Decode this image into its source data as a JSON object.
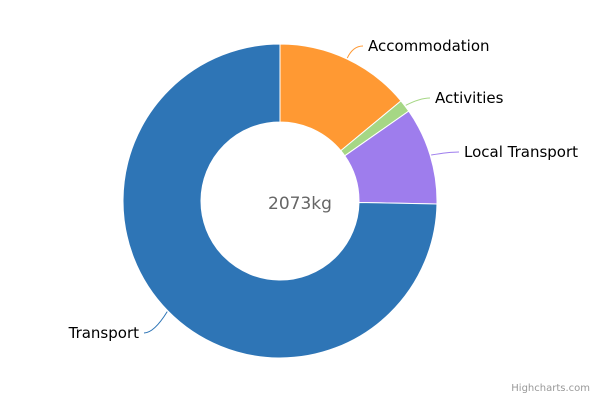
{
  "chart_data": {
    "type": "pie",
    "variant": "donut",
    "center_text": "2073kg",
    "slices": [
      {
        "name": "Accommodation",
        "value": 14.0,
        "color": "#ff9933"
      },
      {
        "name": "Activities",
        "value": 1.3,
        "color": "#a6d785"
      },
      {
        "name": "Local Transport",
        "value": 10.0,
        "color": "#9e7ded"
      },
      {
        "name": "Transport",
        "value": 74.7,
        "color": "#2e75b6"
      }
    ]
  },
  "credits": "Highcharts.com"
}
